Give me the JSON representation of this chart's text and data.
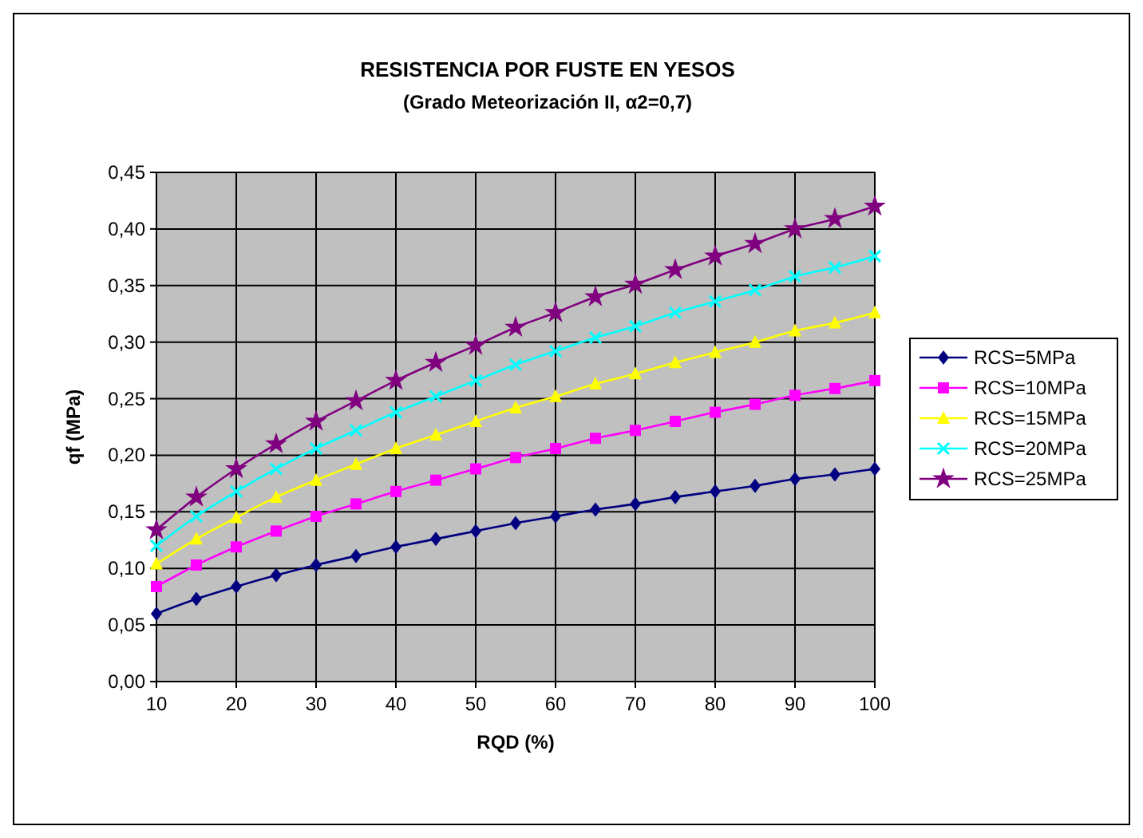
{
  "chart_data": {
    "type": "line",
    "title": "RESISTENCIA POR FUSTE EN YESOS",
    "subtitle": "(Grado Meteorización II, α2=0,7)",
    "xlabel": "RQD (%)",
    "ylabel": "qf (MPa)",
    "x": [
      10,
      15,
      20,
      25,
      30,
      35,
      40,
      45,
      50,
      55,
      60,
      65,
      70,
      75,
      80,
      85,
      90,
      95,
      100
    ],
    "xlim": [
      10,
      100
    ],
    "xticks": [
      10,
      20,
      30,
      40,
      50,
      60,
      70,
      80,
      90,
      100
    ],
    "ylim": [
      0,
      0.45
    ],
    "yticks": [
      {
        "value": 0,
        "label": "0,00"
      },
      {
        "value": 0.05,
        "label": "0,05"
      },
      {
        "value": 0.1,
        "label": "0,10"
      },
      {
        "value": 0.15,
        "label": "0,15"
      },
      {
        "value": 0.2,
        "label": "0,20"
      },
      {
        "value": 0.25,
        "label": "0,25"
      },
      {
        "value": 0.3,
        "label": "0,30"
      },
      {
        "value": 0.35,
        "label": "0,35"
      },
      {
        "value": 0.4,
        "label": "0,40"
      },
      {
        "value": 0.45,
        "label": "0,45"
      }
    ],
    "grid": true,
    "legend": "right",
    "line_style": "solid",
    "series": [
      {
        "name": "RCS=5MPa",
        "color": "#000080",
        "marker": "diamond",
        "values": [
          0.06,
          0.073,
          0.084,
          0.094,
          0.103,
          0.111,
          0.119,
          0.126,
          0.133,
          0.14,
          0.146,
          0.152,
          0.157,
          0.163,
          0.168,
          0.173,
          0.179,
          0.183,
          0.188
        ]
      },
      {
        "name": "RCS=10MPa",
        "color": "#ff00ff",
        "marker": "square",
        "values": [
          0.084,
          0.103,
          0.119,
          0.133,
          0.146,
          0.157,
          0.168,
          0.178,
          0.188,
          0.198,
          0.206,
          0.215,
          0.222,
          0.23,
          0.238,
          0.245,
          0.253,
          0.259,
          0.266
        ]
      },
      {
        "name": "RCS=15MPa",
        "color": "#ffff00",
        "marker": "triangle",
        "values": [
          0.104,
          0.126,
          0.145,
          0.163,
          0.178,
          0.192,
          0.206,
          0.218,
          0.23,
          0.242,
          0.252,
          0.263,
          0.272,
          0.282,
          0.291,
          0.3,
          0.31,
          0.317,
          0.326
        ]
      },
      {
        "name": "RCS=20MPa",
        "color": "#00ffff",
        "marker": "cross",
        "values": [
          0.12,
          0.146,
          0.168,
          0.188,
          0.206,
          0.222,
          0.238,
          0.252,
          0.266,
          0.28,
          0.292,
          0.304,
          0.314,
          0.326,
          0.336,
          0.346,
          0.358,
          0.366,
          0.376
        ]
      },
      {
        "name": "RCS=25MPa",
        "color": "#800080",
        "marker": "star",
        "values": [
          0.134,
          0.163,
          0.188,
          0.21,
          0.23,
          0.248,
          0.266,
          0.282,
          0.297,
          0.313,
          0.326,
          0.34,
          0.351,
          0.364,
          0.376,
          0.387,
          0.4,
          0.409,
          0.42
        ]
      }
    ]
  }
}
